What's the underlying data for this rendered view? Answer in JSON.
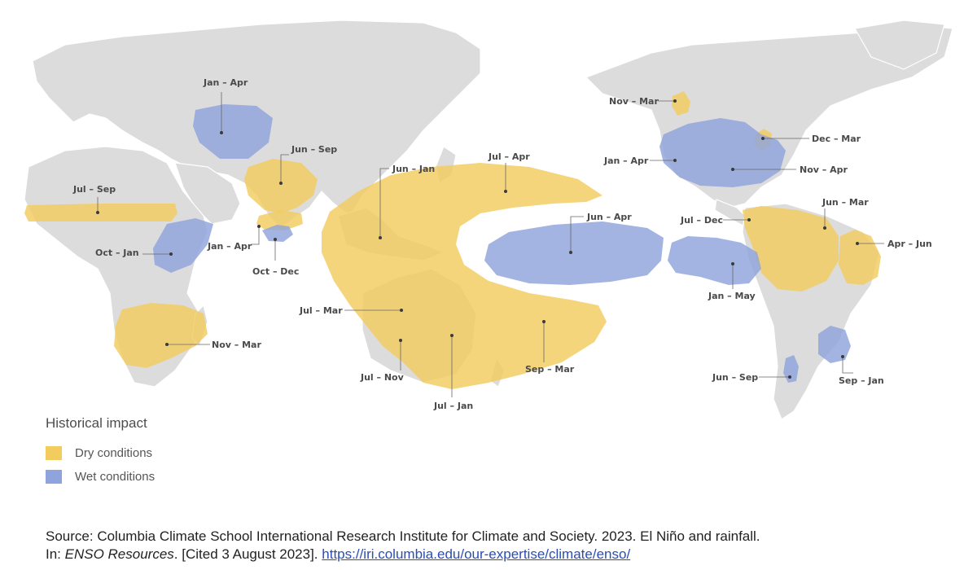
{
  "colors": {
    "dry": "#f3cc5f",
    "wet": "#8fa4dc",
    "land": "#dcdcdc"
  },
  "legend": {
    "title": "Historical impact",
    "items": [
      {
        "label": "Dry conditions",
        "color": "#f3cc5f"
      },
      {
        "label": "Wet conditions",
        "color": "#8fa4dc"
      }
    ]
  },
  "regions": [
    {
      "id": "central-asia",
      "label": "Jan – Apr",
      "type": "wet"
    },
    {
      "id": "india",
      "label": "Jun – Sep",
      "type": "dry"
    },
    {
      "id": "sahel",
      "label": "Jul – Sep",
      "type": "dry"
    },
    {
      "id": "east-africa",
      "label": "Oct – Jan",
      "type": "wet"
    },
    {
      "id": "sri-lanka-dry",
      "label": "Jan – Apr",
      "type": "dry"
    },
    {
      "id": "sri-lanka-wet",
      "label": "Oct – Dec",
      "type": "wet"
    },
    {
      "id": "southern-africa",
      "label": "Nov – Mar",
      "type": "dry"
    },
    {
      "id": "philippines",
      "label": "Jun – Jan",
      "type": "dry"
    },
    {
      "id": "pacific-north",
      "label": "Jul – Apr",
      "type": "dry"
    },
    {
      "id": "north-australia",
      "label": "Jul – Mar",
      "type": "dry"
    },
    {
      "id": "west-australia",
      "label": "Jul – Nov",
      "type": "dry"
    },
    {
      "id": "east-australia",
      "label": "Jul – Jan",
      "type": "dry"
    },
    {
      "id": "pacific-south",
      "label": "Sep – Mar",
      "type": "dry"
    },
    {
      "id": "central-pacific",
      "label": "Jun – Apr",
      "type": "wet"
    },
    {
      "id": "alaska-canada",
      "label": "Nov – Mar",
      "type": "dry"
    },
    {
      "id": "great-lakes",
      "label": "Dec – Mar",
      "type": "dry"
    },
    {
      "id": "gulf-coast",
      "label": "Jan – Apr",
      "type": "wet"
    },
    {
      "id": "southeast-us",
      "label": "Nov – Apr",
      "type": "wet"
    },
    {
      "id": "central-america",
      "label": "Jul – Dec",
      "type": "dry"
    },
    {
      "id": "northern-south-america",
      "label": "Jun – Mar",
      "type": "dry"
    },
    {
      "id": "northeast-brazil",
      "label": "Apr – Jun",
      "type": "dry"
    },
    {
      "id": "ecuador-peru",
      "label": "Jan – May",
      "type": "wet"
    },
    {
      "id": "southeast-south-america",
      "label": "Sep – Jan",
      "type": "wet"
    },
    {
      "id": "central-chile",
      "label": "Jun – Sep",
      "type": "wet"
    }
  ],
  "source": {
    "label": "Source:",
    "text1": " Columbia Climate School International Research Institute for Climate and Society. 2023. El Niño and rainfall.",
    "text2_pre": "In: ",
    "text2_italic": "ENSO Resources",
    "text2_post": ". [Cited 3 August 2023]. ",
    "link": "https://iri.columbia.edu/our-expertise/climate/enso/"
  }
}
